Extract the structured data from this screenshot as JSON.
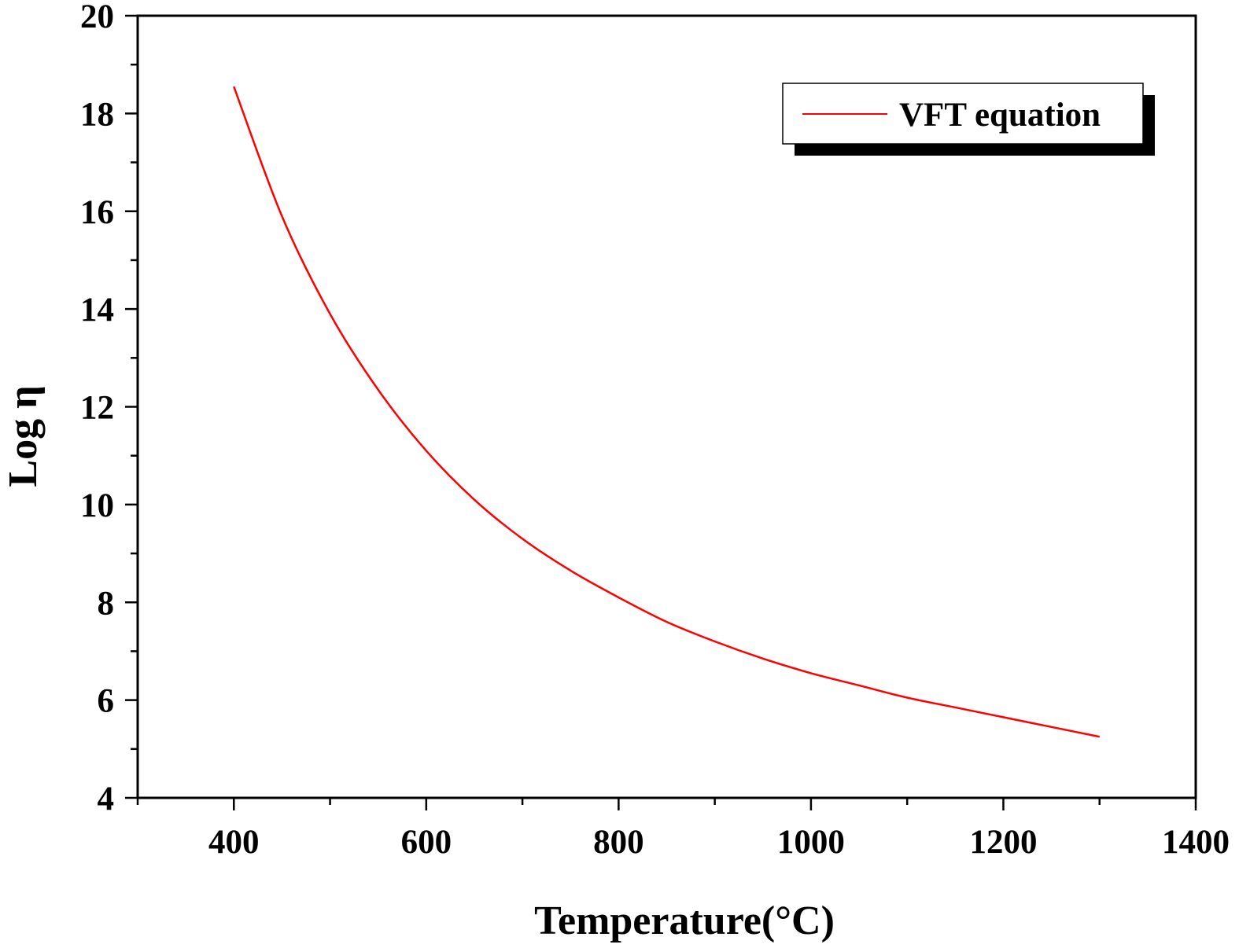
{
  "chart_data": {
    "type": "line",
    "title": "",
    "xlabel": "Temperature(°C)",
    "ylabel": "Log η",
    "xlim": [
      300,
      1400
    ],
    "ylim": [
      4,
      20
    ],
    "x_ticks": [
      400,
      600,
      800,
      1000,
      1200,
      1400
    ],
    "x_tick_labels": [
      "400",
      "600",
      "800",
      "1000",
      "1200",
      "1400"
    ],
    "y_ticks": [
      4,
      6,
      8,
      10,
      12,
      14,
      16,
      18,
      20
    ],
    "y_tick_labels": [
      "4",
      "6",
      "8",
      "10",
      "12",
      "14",
      "16",
      "18",
      "20"
    ],
    "grid": false,
    "legend_position": "top-right",
    "series": [
      {
        "name": "VFT equation",
        "color": "#ff0000",
        "x": [
          400,
          450,
          500,
          550,
          600,
          650,
          700,
          750,
          800,
          850,
          900,
          950,
          1000,
          1050,
          1100,
          1150,
          1200,
          1250,
          1300
        ],
        "y": [
          18.55,
          15.9,
          13.9,
          12.35,
          11.1,
          10.1,
          9.3,
          8.65,
          8.1,
          7.6,
          7.2,
          6.85,
          6.55,
          6.3,
          6.05,
          5.85,
          5.65,
          5.45,
          5.25
        ]
      }
    ]
  }
}
